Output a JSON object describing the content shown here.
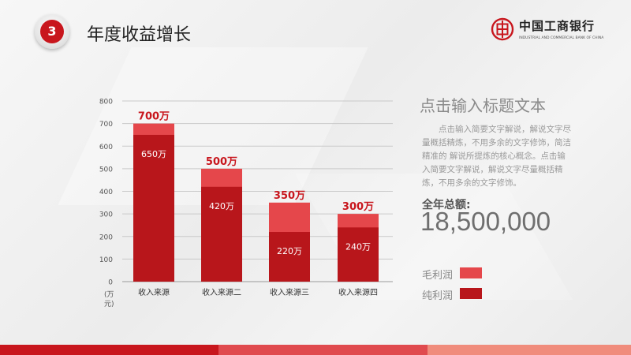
{
  "header": {
    "number": "3",
    "title": "年度收益增长"
  },
  "logo": {
    "name_cn": "中国工商银行",
    "name_en": "INDUSTRIAL AND COMMERCIAL BANK OF CHINA"
  },
  "side_panel": {
    "title": "点击输入标题文本",
    "description": "点击输入简要文字解说，解说文字尽量概括精炼，不用多余的文字修饰，简洁精准的 解说所提炼的核心概念。点击输入简要文字解说，解说文字尽量概括精炼，不用多余的文字修饰。",
    "total_label": "全年总额:",
    "total_value": "18,500,000"
  },
  "legend": [
    {
      "label": "毛利润",
      "color": "#e5474b"
    },
    {
      "label": "纯利润",
      "color": "#b8161b"
    }
  ],
  "colors": {
    "accent": "#c8161d",
    "gross": "#e5474b",
    "net": "#b8161b",
    "band": [
      "#c8161d",
      "#e04a4e",
      "#f08c7c"
    ]
  },
  "chart_data": {
    "type": "bar",
    "categories": [
      "收入来源",
      "收入来源二",
      "收入来源三",
      "收入来源四"
    ],
    "series": [
      {
        "name": "毛利润",
        "values": [
          700,
          500,
          350,
          300
        ]
      },
      {
        "name": "纯利润",
        "values": [
          650,
          420,
          220,
          240
        ]
      }
    ],
    "bar_top_labels": [
      "700万",
      "500万",
      "350万",
      "300万"
    ],
    "bar_inner_labels": [
      "650万",
      "420万",
      "220万",
      "240万"
    ],
    "ylabel": "(万元)",
    "yticks": [
      0,
      100,
      200,
      300,
      400,
      500,
      600,
      700,
      800
    ],
    "ylim": [
      0,
      800
    ],
    "grid": true,
    "legend_position": "right"
  }
}
